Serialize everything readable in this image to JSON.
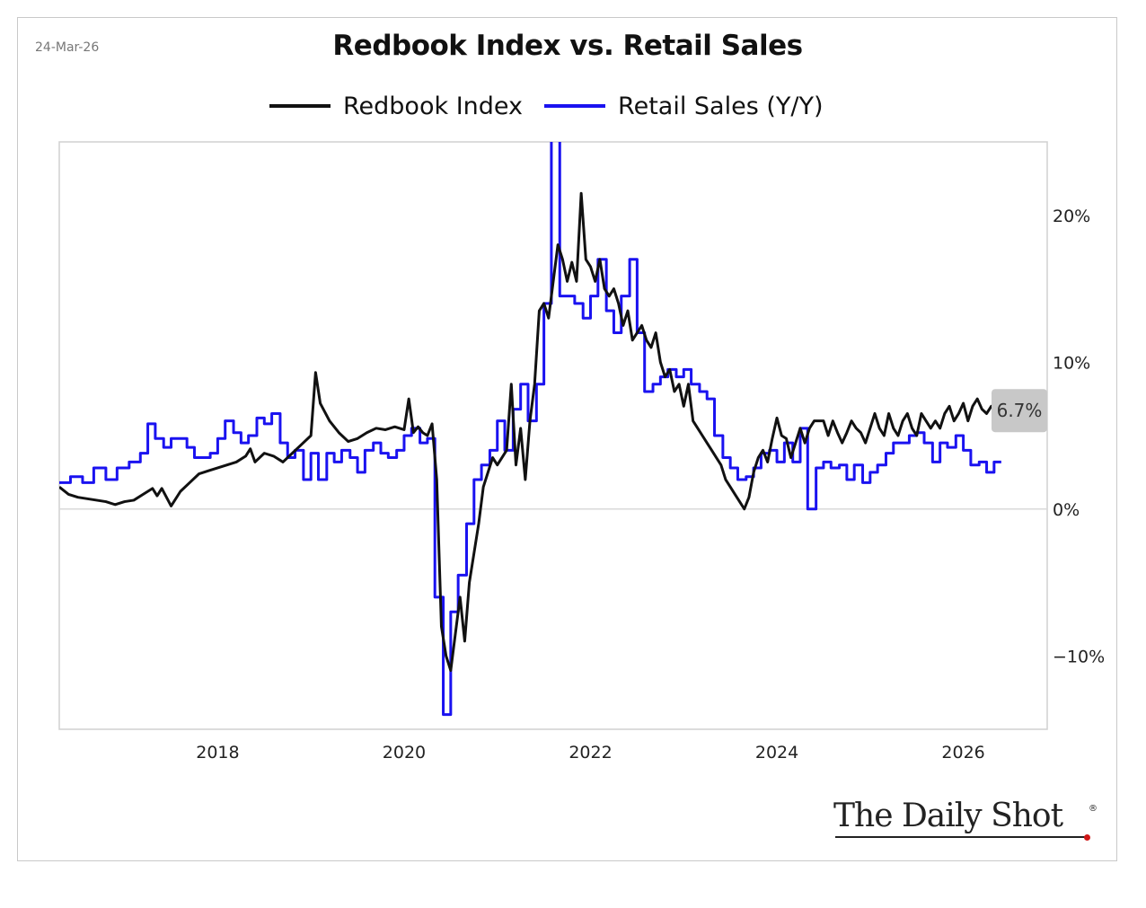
{
  "date_label": "24-Mar-26",
  "logo": {
    "text": "The Daily Shot",
    "mark": "®"
  },
  "colors": {
    "redbook": "#111111",
    "retail": "#1a12f0",
    "grid": "#d9d9d9",
    "plot_border": "#d0d0d0",
    "badge": "#c8c8c8"
  },
  "chart_data": {
    "type": "line",
    "title": "Redbook Index vs. Retail Sales",
    "xlabel": "",
    "ylabel": "",
    "xlim": [
      2016.3,
      2026.9
    ],
    "ylim": [
      -15,
      25
    ],
    "x_ticks": [
      2018,
      2020,
      2022,
      2024,
      2026
    ],
    "x_tick_labels": [
      "2018",
      "2020",
      "2022",
      "2024",
      "2026"
    ],
    "y_ticks": [
      20,
      10,
      0,
      -10
    ],
    "y_tick_labels": [
      "20%",
      "10%",
      "0%",
      "−10%"
    ],
    "y_axis_side": "right",
    "grid": "horizontal at 0 only",
    "legend_position": "top-center",
    "last_value_label": "6.7%",
    "series": [
      {
        "name": "Redbook Index",
        "style": "weekly",
        "points": [
          [
            2016.3,
            1.5
          ],
          [
            2016.4,
            1.0
          ],
          [
            2016.5,
            0.8
          ],
          [
            2016.6,
            0.7
          ],
          [
            2016.7,
            0.6
          ],
          [
            2016.8,
            0.5
          ],
          [
            2016.9,
            0.3
          ],
          [
            2017.0,
            0.5
          ],
          [
            2017.1,
            0.6
          ],
          [
            2017.2,
            1.0
          ],
          [
            2017.3,
            1.4
          ],
          [
            2017.35,
            0.9
          ],
          [
            2017.4,
            1.4
          ],
          [
            2017.5,
            0.2
          ],
          [
            2017.6,
            1.2
          ],
          [
            2017.7,
            1.8
          ],
          [
            2017.8,
            2.4
          ],
          [
            2017.9,
            2.6
          ],
          [
            2018.0,
            2.8
          ],
          [
            2018.1,
            3.0
          ],
          [
            2018.2,
            3.2
          ],
          [
            2018.3,
            3.6
          ],
          [
            2018.35,
            4.1
          ],
          [
            2018.4,
            3.2
          ],
          [
            2018.5,
            3.8
          ],
          [
            2018.6,
            3.6
          ],
          [
            2018.7,
            3.2
          ],
          [
            2018.8,
            3.8
          ],
          [
            2018.9,
            4.4
          ],
          [
            2019.0,
            5.0
          ],
          [
            2019.05,
            9.3
          ],
          [
            2019.1,
            7.2
          ],
          [
            2019.2,
            6.0
          ],
          [
            2019.3,
            5.2
          ],
          [
            2019.4,
            4.6
          ],
          [
            2019.5,
            4.8
          ],
          [
            2019.6,
            5.2
          ],
          [
            2019.7,
            5.5
          ],
          [
            2019.8,
            5.4
          ],
          [
            2019.9,
            5.6
          ],
          [
            2020.0,
            5.4
          ],
          [
            2020.05,
            7.5
          ],
          [
            2020.1,
            5.2
          ],
          [
            2020.15,
            5.6
          ],
          [
            2020.2,
            5.2
          ],
          [
            2020.25,
            5.0
          ],
          [
            2020.3,
            5.8
          ],
          [
            2020.35,
            2.0
          ],
          [
            2020.4,
            -8.0
          ],
          [
            2020.45,
            -10.0
          ],
          [
            2020.5,
            -11.0
          ],
          [
            2020.55,
            -8.5
          ],
          [
            2020.6,
            -6.0
          ],
          [
            2020.65,
            -9.0
          ],
          [
            2020.7,
            -5.0
          ],
          [
            2020.75,
            -3.0
          ],
          [
            2020.8,
            -1.0
          ],
          [
            2020.85,
            1.5
          ],
          [
            2020.9,
            2.5
          ],
          [
            2020.95,
            3.5
          ],
          [
            2021.0,
            3.0
          ],
          [
            2021.1,
            4.0
          ],
          [
            2021.15,
            8.5
          ],
          [
            2021.2,
            3.0
          ],
          [
            2021.25,
            5.5
          ],
          [
            2021.3,
            2.0
          ],
          [
            2021.35,
            6.0
          ],
          [
            2021.4,
            8.5
          ],
          [
            2021.45,
            13.5
          ],
          [
            2021.5,
            14.0
          ],
          [
            2021.55,
            13.0
          ],
          [
            2021.6,
            15.5
          ],
          [
            2021.65,
            18.0
          ],
          [
            2021.7,
            17.0
          ],
          [
            2021.75,
            15.5
          ],
          [
            2021.8,
            16.8
          ],
          [
            2021.85,
            15.5
          ],
          [
            2021.9,
            21.5
          ],
          [
            2021.95,
            17.0
          ],
          [
            2022.0,
            16.5
          ],
          [
            2022.05,
            15.5
          ],
          [
            2022.1,
            17.0
          ],
          [
            2022.15,
            15.0
          ],
          [
            2022.2,
            14.5
          ],
          [
            2022.25,
            15.0
          ],
          [
            2022.3,
            14.0
          ],
          [
            2022.35,
            12.5
          ],
          [
            2022.4,
            13.5
          ],
          [
            2022.45,
            11.5
          ],
          [
            2022.5,
            12.0
          ],
          [
            2022.55,
            12.5
          ],
          [
            2022.6,
            11.5
          ],
          [
            2022.65,
            11.0
          ],
          [
            2022.7,
            12.0
          ],
          [
            2022.75,
            10.0
          ],
          [
            2022.8,
            9.0
          ],
          [
            2022.85,
            9.5
          ],
          [
            2022.9,
            8.0
          ],
          [
            2022.95,
            8.5
          ],
          [
            2023.0,
            7.0
          ],
          [
            2023.05,
            8.5
          ],
          [
            2023.1,
            6.0
          ],
          [
            2023.15,
            5.5
          ],
          [
            2023.2,
            5.0
          ],
          [
            2023.25,
            4.5
          ],
          [
            2023.3,
            4.0
          ],
          [
            2023.35,
            3.5
          ],
          [
            2023.4,
            3.0
          ],
          [
            2023.45,
            2.0
          ],
          [
            2023.5,
            1.5
          ],
          [
            2023.55,
            1.0
          ],
          [
            2023.6,
            0.5
          ],
          [
            2023.65,
            0.0
          ],
          [
            2023.7,
            0.8
          ],
          [
            2023.75,
            2.5
          ],
          [
            2023.8,
            3.5
          ],
          [
            2023.85,
            4.0
          ],
          [
            2023.9,
            3.2
          ],
          [
            2023.95,
            4.8
          ],
          [
            2024.0,
            6.2
          ],
          [
            2024.05,
            5.0
          ],
          [
            2024.1,
            4.8
          ],
          [
            2024.15,
            3.5
          ],
          [
            2024.2,
            4.5
          ],
          [
            2024.25,
            5.5
          ],
          [
            2024.3,
            4.5
          ],
          [
            2024.35,
            5.5
          ],
          [
            2024.4,
            6.0
          ],
          [
            2024.5,
            6.0
          ],
          [
            2024.55,
            5.0
          ],
          [
            2024.6,
            6.0
          ],
          [
            2024.65,
            5.2
          ],
          [
            2024.7,
            4.5
          ],
          [
            2024.75,
            5.2
          ],
          [
            2024.8,
            6.0
          ],
          [
            2024.85,
            5.5
          ],
          [
            2024.9,
            5.2
          ],
          [
            2024.95,
            4.5
          ],
          [
            2025.0,
            5.5
          ],
          [
            2025.05,
            6.5
          ],
          [
            2025.1,
            5.5
          ],
          [
            2025.15,
            5.0
          ],
          [
            2025.2,
            6.5
          ],
          [
            2025.25,
            5.5
          ],
          [
            2025.3,
            5.0
          ],
          [
            2025.35,
            6.0
          ],
          [
            2025.4,
            6.5
          ],
          [
            2025.45,
            5.5
          ],
          [
            2025.5,
            5.0
          ],
          [
            2025.55,
            6.5
          ],
          [
            2025.6,
            6.0
          ],
          [
            2025.65,
            5.5
          ],
          [
            2025.7,
            6.0
          ],
          [
            2025.75,
            5.5
          ],
          [
            2025.8,
            6.5
          ],
          [
            2025.85,
            7.0
          ],
          [
            2025.9,
            6.0
          ],
          [
            2025.95,
            6.5
          ],
          [
            2026.0,
            7.2
          ],
          [
            2026.05,
            6.0
          ],
          [
            2026.1,
            7.0
          ],
          [
            2026.15,
            7.5
          ],
          [
            2026.2,
            6.8
          ],
          [
            2026.25,
            6.5
          ],
          [
            2026.3,
            7.0
          ],
          [
            2026.35,
            6.7
          ]
        ]
      },
      {
        "name": "Retail Sales (Y/Y)",
        "style": "step",
        "points": [
          [
            2016.3,
            1.8
          ],
          [
            2016.42,
            2.2
          ],
          [
            2016.55,
            1.8
          ],
          [
            2016.67,
            2.8
          ],
          [
            2016.8,
            2.0
          ],
          [
            2016.92,
            2.8
          ],
          [
            2017.05,
            3.2
          ],
          [
            2017.17,
            3.8
          ],
          [
            2017.25,
            5.8
          ],
          [
            2017.33,
            4.8
          ],
          [
            2017.42,
            4.2
          ],
          [
            2017.5,
            4.8
          ],
          [
            2017.67,
            4.2
          ],
          [
            2017.75,
            3.5
          ],
          [
            2017.92,
            3.8
          ],
          [
            2018.0,
            4.8
          ],
          [
            2018.08,
            6.0
          ],
          [
            2018.17,
            5.2
          ],
          [
            2018.25,
            4.5
          ],
          [
            2018.33,
            5.0
          ],
          [
            2018.42,
            6.2
          ],
          [
            2018.5,
            5.8
          ],
          [
            2018.58,
            6.5
          ],
          [
            2018.67,
            4.5
          ],
          [
            2018.75,
            3.5
          ],
          [
            2018.83,
            4.0
          ],
          [
            2018.92,
            2.0
          ],
          [
            2019.0,
            3.8
          ],
          [
            2019.08,
            2.0
          ],
          [
            2019.17,
            3.8
          ],
          [
            2019.25,
            3.2
          ],
          [
            2019.33,
            4.0
          ],
          [
            2019.42,
            3.5
          ],
          [
            2019.5,
            2.5
          ],
          [
            2019.58,
            4.0
          ],
          [
            2019.67,
            4.5
          ],
          [
            2019.75,
            3.8
          ],
          [
            2019.83,
            3.5
          ],
          [
            2019.92,
            4.0
          ],
          [
            2020.0,
            5.0
          ],
          [
            2020.08,
            5.5
          ],
          [
            2020.17,
            4.5
          ],
          [
            2020.25,
            4.8
          ],
          [
            2020.33,
            -6.0
          ],
          [
            2020.42,
            -14.0
          ],
          [
            2020.5,
            -7.0
          ],
          [
            2020.58,
            -4.5
          ],
          [
            2020.67,
            -1.0
          ],
          [
            2020.75,
            2.0
          ],
          [
            2020.83,
            3.0
          ],
          [
            2020.92,
            4.0
          ],
          [
            2021.0,
            6.0
          ],
          [
            2021.08,
            4.0
          ],
          [
            2021.17,
            6.8
          ],
          [
            2021.25,
            8.5
          ],
          [
            2021.33,
            6.0
          ],
          [
            2021.42,
            8.5
          ],
          [
            2021.5,
            14.0
          ],
          [
            2021.58,
            50.0
          ],
          [
            2021.67,
            14.5
          ],
          [
            2021.75,
            14.5
          ],
          [
            2021.83,
            14.0
          ],
          [
            2021.92,
            13.0
          ],
          [
            2022.0,
            14.5
          ],
          [
            2022.08,
            17.0
          ],
          [
            2022.17,
            13.5
          ],
          [
            2022.25,
            12.0
          ],
          [
            2022.33,
            14.5
          ],
          [
            2022.42,
            17.0
          ],
          [
            2022.5,
            12.0
          ],
          [
            2022.58,
            8.0
          ],
          [
            2022.67,
            8.5
          ],
          [
            2022.75,
            9.0
          ],
          [
            2022.83,
            9.5
          ],
          [
            2022.92,
            9.0
          ],
          [
            2023.0,
            9.5
          ],
          [
            2023.08,
            8.5
          ],
          [
            2023.17,
            8.0
          ],
          [
            2023.25,
            7.5
          ],
          [
            2023.33,
            5.0
          ],
          [
            2023.42,
            3.5
          ],
          [
            2023.5,
            2.8
          ],
          [
            2023.58,
            2.0
          ],
          [
            2023.67,
            2.2
          ],
          [
            2023.75,
            2.8
          ],
          [
            2023.83,
            3.8
          ],
          [
            2023.92,
            4.0
          ],
          [
            2024.0,
            3.2
          ],
          [
            2024.08,
            4.5
          ],
          [
            2024.17,
            3.2
          ],
          [
            2024.25,
            5.5
          ],
          [
            2024.33,
            0.0
          ],
          [
            2024.42,
            2.8
          ],
          [
            2024.5,
            3.2
          ],
          [
            2024.58,
            2.8
          ],
          [
            2024.67,
            3.0
          ],
          [
            2024.75,
            2.0
          ],
          [
            2024.83,
            3.0
          ],
          [
            2024.92,
            1.8
          ],
          [
            2025.0,
            2.5
          ],
          [
            2025.08,
            3.0
          ],
          [
            2025.17,
            3.8
          ],
          [
            2025.25,
            4.5
          ],
          [
            2025.33,
            4.5
          ],
          [
            2025.42,
            5.0
          ],
          [
            2025.5,
            5.2
          ],
          [
            2025.58,
            4.5
          ],
          [
            2025.67,
            3.2
          ],
          [
            2025.75,
            4.5
          ],
          [
            2025.83,
            4.2
          ],
          [
            2025.92,
            5.0
          ],
          [
            2026.0,
            4.0
          ],
          [
            2026.08,
            3.0
          ],
          [
            2026.17,
            3.2
          ],
          [
            2026.25,
            2.5
          ],
          [
            2026.33,
            3.2
          ]
        ]
      }
    ]
  }
}
